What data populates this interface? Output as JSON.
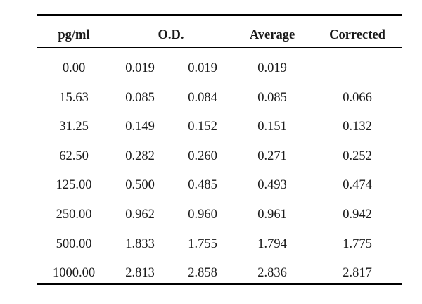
{
  "table": {
    "headers": {
      "pgml": "pg/ml",
      "od": "O.D.",
      "average": "Average",
      "corrected": "Corrected"
    },
    "rows": [
      {
        "pgml": "0.00",
        "od1": "0.019",
        "od2": "0.019",
        "average": "0.019",
        "corrected": ""
      },
      {
        "pgml": "15.63",
        "od1": "0.085",
        "od2": "0.084",
        "average": "0.085",
        "corrected": "0.066"
      },
      {
        "pgml": "31.25",
        "od1": "0.149",
        "od2": "0.152",
        "average": "0.151",
        "corrected": "0.132"
      },
      {
        "pgml": "62.50",
        "od1": "0.282",
        "od2": "0.260",
        "average": "0.271",
        "corrected": "0.252"
      },
      {
        "pgml": "125.00",
        "od1": "0.500",
        "od2": "0.485",
        "average": "0.493",
        "corrected": "0.474"
      },
      {
        "pgml": "250.00",
        "od1": "0.962",
        "od2": "0.960",
        "average": "0.961",
        "corrected": "0.942"
      },
      {
        "pgml": "500.00",
        "od1": "1.833",
        "od2": "1.755",
        "average": "1.794",
        "corrected": "1.775"
      },
      {
        "pgml": "1000.00",
        "od1": "2.813",
        "od2": "2.858",
        "average": "2.836",
        "corrected": "2.817"
      }
    ]
  }
}
